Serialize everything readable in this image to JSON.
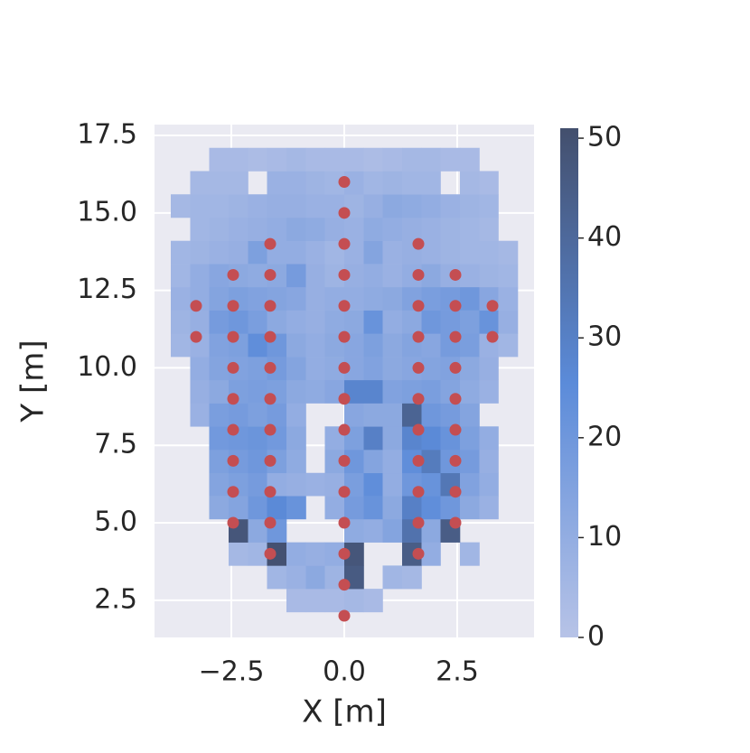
{
  "chart_data": {
    "type": "hist2d",
    "x_label": "X [m]",
    "y_label": "Y [m]",
    "xlim": [
      -4.2,
      4.2
    ],
    "ylim": [
      1.3,
      17.85
    ],
    "xticks": [
      {
        "value": -2.5,
        "label": "−2.5"
      },
      {
        "value": 0,
        "label": "0.0"
      },
      2.5
    ],
    "yticks": [
      2.5,
      {
        "value": 5,
        "label": "5.0"
      },
      7.5,
      {
        "value": 10,
        "label": "10.0"
      },
      12.5,
      {
        "value": 15,
        "label": "15.0"
      },
      17.5
    ],
    "grid": true,
    "background": "#eaeaf2",
    "x_bins": [
      -3.84,
      -3.41,
      -2.99,
      -2.56,
      -2.13,
      -1.71,
      -1.28,
      -0.85,
      -0.43,
      0,
      0.43,
      0.85,
      1.28,
      1.71,
      2.13,
      2.56,
      2.99,
      3.41,
      3.84
    ],
    "y_bins": [
      2.12,
      2.87,
      3.62,
      4.37,
      5.12,
      5.87,
      6.61,
      7.36,
      8.11,
      8.86,
      9.61,
      10.36,
      11.11,
      11.86,
      12.61,
      13.36,
      14.1,
      14.85,
      15.6,
      16.35,
      17.1
    ],
    "counts": [
      [
        null,
        null,
        null,
        null,
        null,
        null,
        4,
        4,
        4,
        5,
        4,
        null,
        null,
        null,
        null,
        null,
        null,
        null
      ],
      [
        null,
        null,
        null,
        null,
        null,
        6,
        8,
        12,
        7,
        46,
        null,
        6,
        5,
        null,
        null,
        null,
        null,
        null
      ],
      [
        null,
        null,
        null,
        5,
        6,
        50,
        10,
        9,
        10,
        48,
        null,
        null,
        45,
        10,
        null,
        6,
        null,
        null
      ],
      [
        null,
        null,
        null,
        48,
        12,
        20,
        null,
        null,
        null,
        11,
        10,
        14,
        36,
        12,
        45,
        null,
        null,
        null
      ],
      [
        null,
        null,
        12,
        14,
        20,
        26,
        22,
        null,
        10,
        18,
        22,
        12,
        30,
        24,
        20,
        12,
        8,
        null
      ],
      [
        null,
        null,
        14,
        16,
        18,
        10,
        9,
        8,
        9,
        17,
        24,
        10,
        20,
        22,
        34,
        15,
        10,
        null
      ],
      [
        null,
        null,
        16,
        18,
        20,
        16,
        11,
        null,
        12,
        20,
        14,
        10,
        24,
        32,
        20,
        18,
        9,
        null
      ],
      [
        null,
        null,
        19,
        20,
        21,
        19,
        12,
        null,
        10,
        16,
        30,
        12,
        28,
        26,
        22,
        16,
        10,
        null
      ],
      [
        null,
        8,
        17,
        18,
        16,
        18,
        10,
        null,
        null,
        13,
        12,
        12,
        42,
        20,
        18,
        14,
        null,
        null
      ],
      [
        null,
        9,
        12,
        16,
        17,
        16,
        12,
        11,
        13,
        28,
        28,
        15,
        16,
        17,
        14,
        11,
        8,
        null
      ],
      [
        null,
        10,
        14,
        15,
        16,
        18,
        14,
        10,
        11,
        13,
        15,
        12,
        13,
        14,
        15,
        12,
        9,
        null
      ],
      [
        6,
        8,
        15,
        16,
        24,
        20,
        12,
        10,
        12,
        13,
        16,
        12,
        14,
        13,
        18,
        17,
        8,
        6
      ],
      [
        7,
        9,
        18,
        20,
        17,
        12,
        10,
        9,
        11,
        12,
        22,
        10,
        12,
        20,
        18,
        16,
        22,
        9
      ],
      [
        8,
        10,
        14,
        16,
        15,
        14,
        13,
        9,
        10,
        10,
        11,
        12,
        15,
        17,
        18,
        20,
        13,
        8
      ],
      [
        6,
        10,
        13,
        12,
        11,
        12,
        18,
        9,
        7,
        9,
        10,
        8,
        10,
        12,
        9,
        8,
        7,
        6
      ],
      [
        6,
        7,
        8,
        9,
        16,
        10,
        10,
        8,
        6,
        8,
        14,
        8,
        9,
        8,
        7,
        6,
        6,
        5
      ],
      [
        null,
        6,
        7,
        8,
        9,
        10,
        12,
        11,
        9,
        8,
        11,
        10,
        9,
        8,
        7,
        6,
        5,
        null
      ],
      [
        5,
        6,
        6,
        7,
        8,
        9,
        9,
        8,
        8,
        7,
        9,
        12,
        11,
        10,
        8,
        7,
        6,
        null
      ],
      [
        null,
        5,
        5,
        5,
        null,
        8,
        8,
        7,
        6,
        8,
        6,
        7,
        6,
        6,
        null,
        5,
        4,
        null
      ],
      [
        null,
        null,
        4,
        4,
        3,
        4,
        5,
        4,
        4,
        4,
        3,
        4,
        5,
        5,
        4,
        4,
        null,
        null
      ]
    ],
    "cmap": [
      "#b7c3e7",
      "#5b8bd9",
      "#434f6d"
    ],
    "colorbar": {
      "lim": [
        0,
        51
      ],
      "ticks": [
        0,
        10,
        20,
        30,
        40,
        50
      ]
    },
    "points": {
      "color": "#c44e52",
      "x": [
        0,
        0,
        0,
        0,
        0,
        0,
        0,
        0,
        0,
        0,
        0,
        0,
        0,
        0,
        0,
        -1.64,
        -1.64,
        -1.64,
        -1.64,
        -1.64,
        -1.64,
        -1.64,
        -1.64,
        -1.64,
        -1.64,
        -1.64,
        1.64,
        1.64,
        1.64,
        1.64,
        1.64,
        1.64,
        1.64,
        1.64,
        1.64,
        1.64,
        1.64,
        -2.46,
        -2.46,
        -2.46,
        -2.46,
        -2.46,
        -2.46,
        -2.46,
        -2.46,
        -2.46,
        2.46,
        2.46,
        2.46,
        2.46,
        2.46,
        2.46,
        2.46,
        2.46,
        2.46,
        -3.28,
        -3.28,
        3.28,
        3.28
      ],
      "y": [
        2,
        3,
        4,
        5,
        6,
        7,
        8,
        9,
        10,
        11,
        12,
        13,
        14,
        15,
        16,
        4,
        5,
        6,
        7,
        8,
        9,
        10,
        11,
        12,
        13,
        14,
        4,
        5,
        6,
        7,
        8,
        9,
        10,
        11,
        12,
        13,
        14,
        5,
        6,
        7,
        8,
        9,
        10,
        11,
        12,
        13,
        5,
        6,
        7,
        8,
        9,
        10,
        11,
        12,
        13,
        11,
        12,
        11,
        12
      ]
    }
  }
}
